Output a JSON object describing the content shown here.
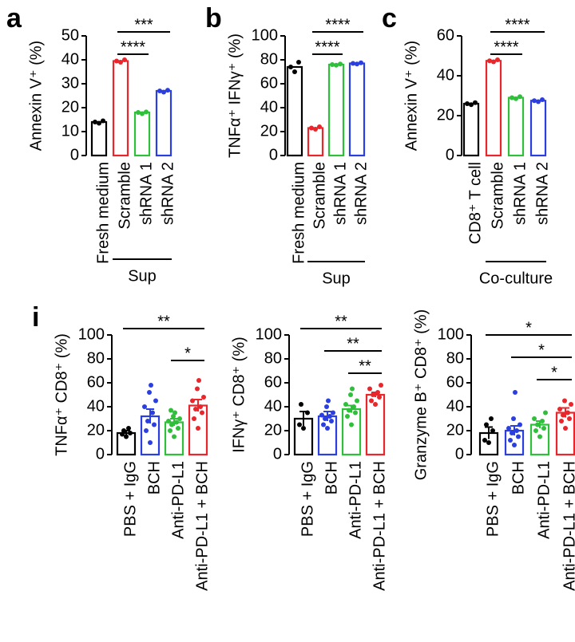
{
  "chart_data": [
    {
      "type": "bar",
      "panel_label": "a",
      "ylabel": "Annexin V⁺ (%)",
      "categories": [
        "Fresh medium",
        "Scramble",
        "shRNA 1",
        "shRNA 2"
      ],
      "values": [
        14,
        39.5,
        18,
        27
      ],
      "points": [
        [
          13.5,
          14,
          14.5
        ],
        [
          39,
          39.5,
          40
        ],
        [
          17.5,
          18,
          18.2
        ],
        [
          26.5,
          27,
          27.3
        ]
      ],
      "colors": [
        "#000000",
        "#e8262b",
        "#2fbf3a",
        "#2b3fe0"
      ],
      "ylim": [
        0,
        50
      ],
      "yticks": [
        0,
        10,
        20,
        30,
        40,
        50
      ],
      "comparisons": [
        {
          "from": 1,
          "to": 3,
          "label": "***"
        },
        {
          "from": 1,
          "to": 2,
          "label": "****"
        }
      ],
      "group": {
        "label": "Sup",
        "from": 1,
        "to": 3
      }
    },
    {
      "type": "bar",
      "panel_label": "b",
      "ylabel": "TNFα⁺ IFNγ⁺ (%)",
      "categories": [
        "Fresh medium",
        "Scramble",
        "shRNA 1",
        "shRNA 2"
      ],
      "values": [
        74,
        23,
        76,
        77
      ],
      "points": [
        [
          70,
          74,
          78
        ],
        [
          22,
          23,
          24
        ],
        [
          75.5,
          76,
          76.5
        ],
        [
          76.5,
          77,
          77.5
        ]
      ],
      "colors": [
        "#000000",
        "#e8262b",
        "#2fbf3a",
        "#2b3fe0"
      ],
      "ylim": [
        0,
        100
      ],
      "yticks": [
        0,
        20,
        40,
        60,
        80,
        100
      ],
      "comparisons": [
        {
          "from": 1,
          "to": 3,
          "label": "****"
        },
        {
          "from": 1,
          "to": 2,
          "label": "****"
        }
      ],
      "group": {
        "label": "Sup",
        "from": 1,
        "to": 3
      }
    },
    {
      "type": "bar",
      "panel_label": "c",
      "ylabel": "Annexin V⁺ (%)",
      "categories": [
        "CD8⁺ T cell",
        "Scramble",
        "shRNA 1",
        "shRNA 2"
      ],
      "values": [
        26,
        47.5,
        29,
        27.5
      ],
      "points": [
        [
          25.5,
          26,
          26.5
        ],
        [
          47,
          47.5,
          48
        ],
        [
          28.5,
          29,
          29.5
        ],
        [
          27,
          27.5,
          28
        ]
      ],
      "colors": [
        "#000000",
        "#e8262b",
        "#2fbf3a",
        "#2b3fe0"
      ],
      "ylim": [
        0,
        60
      ],
      "yticks": [
        0,
        20,
        40,
        60
      ],
      "comparisons": [
        {
          "from": 1,
          "to": 3,
          "label": "****"
        },
        {
          "from": 1,
          "to": 2,
          "label": "****"
        }
      ],
      "group": {
        "label": "Co-culture",
        "from": 1,
        "to": 3
      }
    },
    {
      "type": "bar",
      "panel_label": "i",
      "ylabel": "TNFα⁺ CD8⁺ (%)",
      "categories": [
        "PBS + IgG",
        "BCH",
        "Anti-PD-L1",
        "Anti-PD-L1 + BCH"
      ],
      "values": [
        18,
        32,
        27,
        41
      ],
      "errors": [
        2,
        6,
        3,
        5
      ],
      "points": [
        [
          15,
          17,
          18,
          20,
          22
        ],
        [
          10,
          20,
          25,
          28,
          35,
          40,
          45,
          52,
          58
        ],
        [
          15,
          20,
          22,
          25,
          27,
          28,
          30,
          32,
          35,
          37
        ],
        [
          22,
          30,
          35,
          38,
          40,
          45,
          48,
          55,
          62
        ]
      ],
      "colors": [
        "#000000",
        "#2b3fe0",
        "#2fbf3a",
        "#e8262b"
      ],
      "ylim": [
        0,
        100
      ],
      "yticks": [
        0,
        20,
        40,
        60,
        80,
        100
      ],
      "comparisons": [
        {
          "from": 0,
          "to": 3,
          "label": "**"
        },
        {
          "from": 2,
          "to": 3,
          "label": "*"
        }
      ]
    },
    {
      "type": "bar",
      "ylabel": "IFNγ⁺ CD8⁺ (%)",
      "categories": [
        "PBS + IgG",
        "BCH",
        "Anti-PD-L1",
        "Anti-PD-L1 + BCH"
      ],
      "values": [
        30,
        32,
        38,
        50
      ],
      "errors": [
        6,
        4,
        3,
        2
      ],
      "points": [
        [
          22,
          25,
          35,
          42
        ],
        [
          22,
          25,
          28,
          30,
          32,
          33,
          35,
          40,
          45
        ],
        [
          25,
          32,
          35,
          37,
          40,
          42,
          45,
          50,
          55
        ],
        [
          42,
          45,
          48,
          50,
          52,
          55,
          58
        ]
      ],
      "colors": [
        "#000000",
        "#2b3fe0",
        "#2fbf3a",
        "#e8262b"
      ],
      "ylim": [
        0,
        100
      ],
      "yticks": [
        0,
        20,
        40,
        60,
        80,
        100
      ],
      "comparisons": [
        {
          "from": 0,
          "to": 3,
          "label": "**"
        },
        {
          "from": 1,
          "to": 3,
          "label": "**"
        },
        {
          "from": 2,
          "to": 3,
          "label": "**"
        }
      ]
    },
    {
      "type": "bar",
      "ylabel": "Granzyme B⁺ CD8⁺ (%)",
      "categories": [
        "PBS + IgG",
        "BCH",
        "Anti-PD-L1",
        "Anti-PD-L1 + BCH"
      ],
      "values": [
        18,
        20,
        25,
        35
      ],
      "errors": [
        5,
        4,
        3,
        4
      ],
      "points": [
        [
          10,
          12,
          20,
          25,
          30
        ],
        [
          8,
          12,
          15,
          18,
          20,
          22,
          25,
          30,
          52
        ],
        [
          15,
          20,
          22,
          25,
          28,
          30,
          35
        ],
        [
          22,
          28,
          30,
          33,
          35,
          38,
          42,
          45
        ]
      ],
      "colors": [
        "#000000",
        "#2b3fe0",
        "#2fbf3a",
        "#e8262b"
      ],
      "ylim": [
        0,
        100
      ],
      "yticks": [
        0,
        20,
        40,
        60,
        80,
        100
      ],
      "comparisons": [
        {
          "from": 0,
          "to": 3,
          "label": "*"
        },
        {
          "from": 1,
          "to": 3,
          "label": "*"
        },
        {
          "from": 2,
          "to": 3,
          "label": "*"
        }
      ]
    }
  ]
}
